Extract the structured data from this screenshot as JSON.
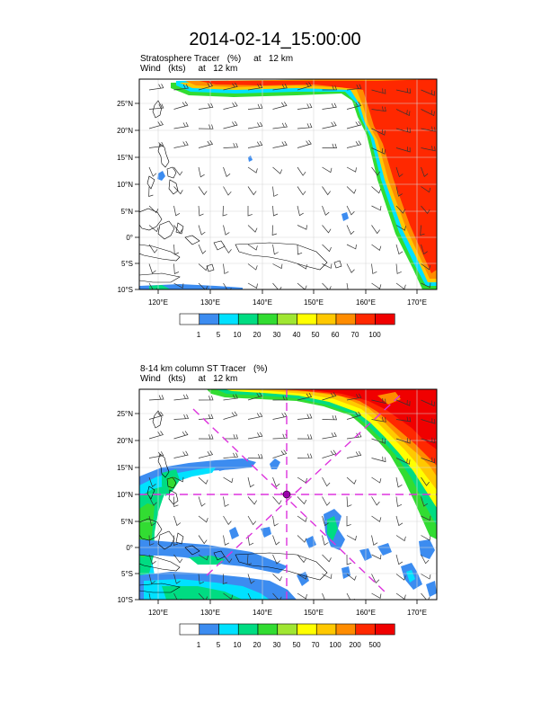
{
  "title": "2014-02-14_15:00:00",
  "panels": [
    {
      "line1": "Stratosphere Tracer   (%)     at   12 km",
      "line2": "Wind   (kts)     at   12 km",
      "lat_labels": [
        "25°N",
        "20°N",
        "15°N",
        "10°N",
        "5°N",
        "0°",
        "5°S",
        "10°S"
      ],
      "lon_labels": [
        "120°E",
        "130°E",
        "140°E",
        "150°E",
        "160°E",
        "170°E"
      ],
      "colorbar_labels": [
        "1",
        "5",
        "10",
        "20",
        "30",
        "40",
        "50",
        "60",
        "70",
        "100"
      ]
    },
    {
      "line1": "8-14 km column ST Tracer   (%)",
      "line2": "Wind   (kts)     at   12 km",
      "lat_labels": [
        "25°N",
        "20°N",
        "15°N",
        "10°N",
        "5°N",
        "0°",
        "5°S",
        "10°S"
      ],
      "lon_labels": [
        "120°E",
        "130°E",
        "140°E",
        "150°E",
        "160°E",
        "170°E"
      ],
      "colorbar_labels": [
        "1",
        "5",
        "10",
        "20",
        "30",
        "50",
        "70",
        "100",
        "200",
        "500"
      ]
    }
  ],
  "colorbar_colors": [
    "#ffffff",
    "#3c8cf0",
    "#00e1ff",
    "#00dc82",
    "#32dc32",
    "#a0e632",
    "#ffff00",
    "#ffc800",
    "#ff8c00",
    "#ff2800",
    "#f00000"
  ],
  "map_extent": {
    "lon_min": 115.5,
    "lon_max": 173,
    "lat_min": -10,
    "lat_max": 29
  },
  "marker": {
    "lon": 145,
    "lat": 10,
    "color": "#cc00cc"
  }
}
